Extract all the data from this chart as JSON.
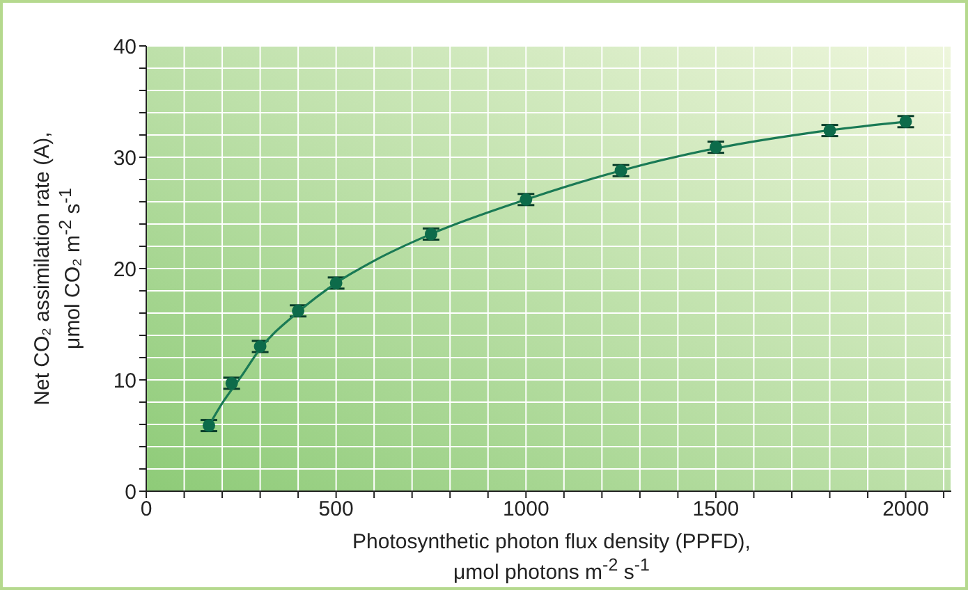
{
  "chart_data": {
    "type": "scatter",
    "xlabel": "Photosynthetic photon flux density (PPFD),\nμmol photons m$^{-2}$ s$^{-1}$",
    "ylabel": "Net CO₂ assimilation rate (A),\nμmol CO₂ m$^{-2}$ s$^{-1}$",
    "series": [
      {
        "color": "#0d6b4a",
        "marker": "circle",
        "x": [
          165,
          225,
          300,
          400,
          500,
          750,
          1000,
          1250,
          1500,
          1800,
          2000
        ],
        "values": [
          5.9,
          9.7,
          13.0,
          16.2,
          18.7,
          23.1,
          26.2,
          28.8,
          30.9,
          32.4,
          33.2
        ],
        "errors": [
          0.5,
          0.5,
          0.5,
          0.5,
          0.5,
          0.5,
          0.5,
          0.5,
          0.5,
          0.5,
          0.5
        ]
      },
      {
        "type": "line",
        "color": "#1a7a55",
        "x": [
          165,
          200,
          250,
          300,
          400,
          500,
          600,
          750,
          1000,
          1250,
          1500,
          1750,
          2000
        ],
        "values": [
          5.9,
          7.9,
          10.3,
          12.8,
          16.1,
          18.7,
          20.7,
          23.1,
          26.2,
          28.8,
          30.8,
          32.2,
          33.2
        ]
      }
    ],
    "line_style": "solid",
    "grid": true,
    "xlim": [
      0,
      2120
    ],
    "xticks": [
      0,
      {
        "value": 100,
        "label": null
      },
      {
        "value": 200,
        "label": null
      },
      {
        "value": 300,
        "label": null
      },
      {
        "value": 400,
        "label": null
      },
      500,
      {
        "value": 600,
        "label": null
      },
      {
        "value": 700,
        "label": null
      },
      {
        "value": 800,
        "label": null
      },
      {
        "value": 900,
        "label": null
      },
      1000,
      {
        "value": 1100,
        "label": null
      },
      {
        "value": 1200,
        "label": null
      },
      {
        "value": 1300,
        "label": null
      },
      {
        "value": 1400,
        "label": null
      },
      1500,
      {
        "value": 1600,
        "label": null
      },
      {
        "value": 1700,
        "label": null
      },
      {
        "value": 1800,
        "label": null
      },
      {
        "value": 1900,
        "label": null
      },
      2000,
      {
        "value": 2100,
        "label": null
      }
    ],
    "ylim": [
      0,
      40
    ],
    "yticks": [
      0,
      {
        "value": 2,
        "label": null
      },
      {
        "value": 4,
        "label": null
      },
      {
        "value": 6,
        "label": null
      },
      {
        "value": 8,
        "label": null
      },
      10,
      {
        "value": 12,
        "label": null
      },
      {
        "value": 14,
        "label": null
      },
      {
        "value": 16,
        "label": null
      },
      {
        "value": 18,
        "label": null
      },
      20,
      {
        "value": 22,
        "label": null
      },
      {
        "value": 24,
        "label": null
      },
      {
        "value": 26,
        "label": null
      },
      {
        "value": 28,
        "label": null
      },
      30,
      {
        "value": 32,
        "label": null
      },
      {
        "value": 34,
        "label": null
      },
      {
        "value": 36,
        "label": null
      },
      {
        "value": 38,
        "label": null
      },
      40
    ]
  }
}
